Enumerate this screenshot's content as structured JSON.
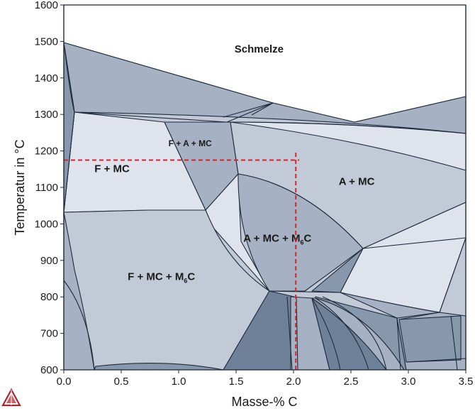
{
  "chart_data": {
    "type": "phase-diagram",
    "xlabel": "Masse-% C",
    "ylabel": "Temperatur in °C",
    "xlim": [
      0,
      3.5
    ],
    "ylim": [
      600,
      1600
    ],
    "x_ticks": [
      "0.0",
      "0.5",
      "1.0",
      "1.5",
      "2.0",
      "2.5",
      "3.0",
      "3.5"
    ],
    "y_ticks": [
      "600",
      "700",
      "800",
      "900",
      "1000",
      "1100",
      "1200",
      "1300",
      "1400",
      "1500",
      "1600"
    ],
    "grid": false,
    "colors": {
      "liquid": "#ffffff",
      "light": "#dfe3ec",
      "medium": "#c2cad8",
      "mid_dark": "#a6b2c4",
      "dark": "#8798ad",
      "darker": "#6f8199",
      "boundary": "#1e2b3c",
      "reference_line": "#d8232a"
    },
    "regions": [
      {
        "label": "Schmelze",
        "x": 1.7,
        "y": 1470,
        "size": 15
      },
      {
        "label": "F + MC",
        "x": 0.42,
        "y": 1142,
        "size": 15
      },
      {
        "label": "F + A + MC",
        "x": 1.1,
        "y": 1213,
        "size": 12
      },
      {
        "label": "A + MC",
        "x": 2.55,
        "y": 1107,
        "size": 15
      },
      {
        "label": "A + MC + M6C",
        "x": 1.86,
        "y": 951,
        "size": 15
      },
      {
        "label": "F + MC + M6C",
        "x": 0.85,
        "y": 846,
        "size": 15
      }
    ],
    "reference_lines": [
      {
        "type": "horizontal",
        "y": 1175,
        "x_from": 0.0,
        "x_to": 2.05
      },
      {
        "type": "vertical",
        "x": 2.02,
        "y_from": 600,
        "y_to": 1195
      }
    ]
  },
  "logo": {
    "name": "thermo-calc-triangle-logo"
  }
}
